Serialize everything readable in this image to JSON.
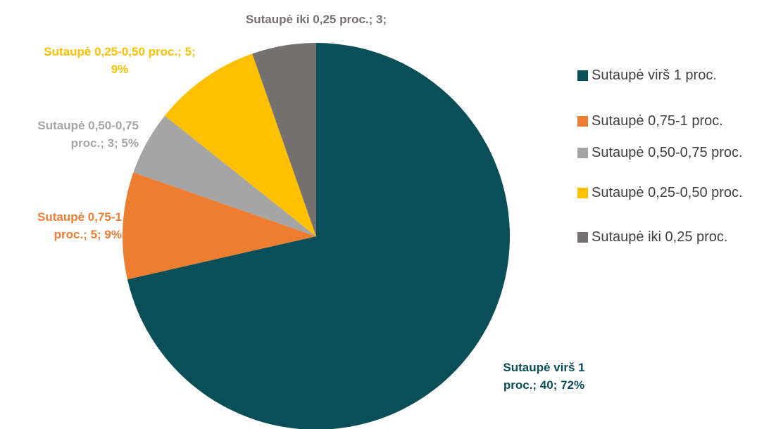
{
  "chart_data": {
    "type": "pie",
    "categories": [
      "Sutaupė virš 1 proc.",
      "Sutaupė 0,75-1 proc.",
      "Sutaupė 0,50-0,75 proc.",
      "Sutaupė 0,25-0,50 proc.",
      "Sutaupė iki 0,25 proc."
    ],
    "values": [
      40,
      5,
      3,
      5,
      3
    ],
    "value_labels": [
      "Sutaupė virš 1 proc.; 40; 72%",
      "Sutaupė 0,75-1 proc.; 5; 9%",
      "Sutaupė 0,50-0,75 proc.; 3; 5%",
      "Sutaupė 0,25-0,50 proc.; 5; 9%",
      "Sutaupė iki 0,25 proc.; 3;"
    ],
    "colors": [
      "#0a4f57",
      "#ed7d31",
      "#a5a5a5",
      "#ffc000",
      "#767171"
    ],
    "legend": "right"
  }
}
